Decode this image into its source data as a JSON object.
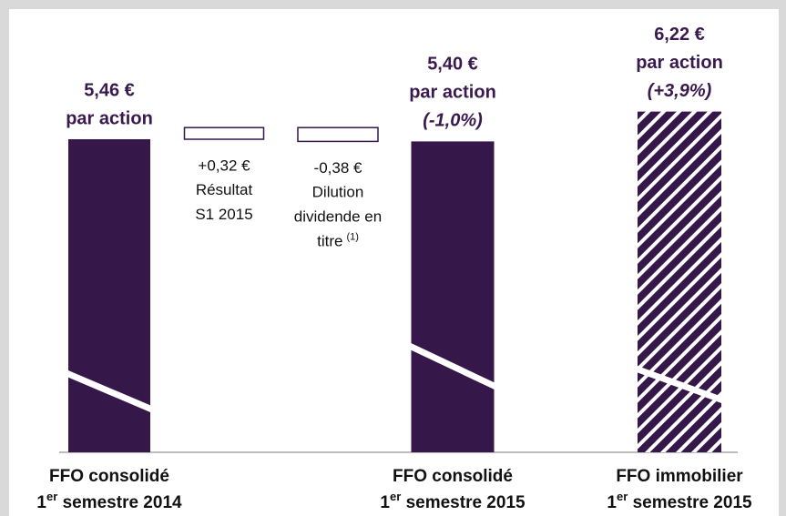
{
  "chart_data": {
    "type": "waterfall",
    "values": [
      5.46,
      0.32,
      -0.38,
      5.4,
      6.22
    ],
    "value_labels": [
      "5,46 €",
      "+0,32 €",
      "-0,38 €",
      "5,40 €",
      "6,22 €"
    ],
    "kinds": [
      "total",
      "delta",
      "delta",
      "total",
      "total"
    ],
    "patterns": [
      "solid",
      "outline",
      "outline",
      "solid",
      "hatch"
    ],
    "color": "#35174a",
    "notes": [
      [
        "par action"
      ],
      [
        "Résultat",
        "S1 2015"
      ],
      [
        "Dilution",
        "dividende en",
        "titre"
      ],
      [
        "par action",
        "(-1,0%)"
      ],
      [
        "par action",
        "(+3,9%)"
      ]
    ],
    "footnote": {
      "index": 2,
      "text": "(1)"
    },
    "categories": [
      {
        "title": "FFO consolidé",
        "ordinal": "1",
        "suffix": "er",
        "period": " semestre 2014"
      },
      null,
      null,
      {
        "title": "FFO consolidé",
        "ordinal": "1",
        "suffix": "er",
        "period": " semestre 2015"
      },
      {
        "title": "FFO immobilier",
        "ordinal": "1",
        "suffix": "er",
        "period": " semestre 2015"
      }
    ]
  }
}
